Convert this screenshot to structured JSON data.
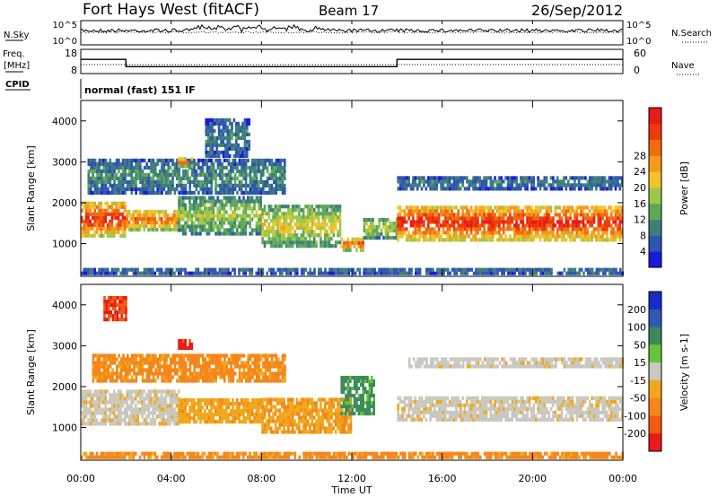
{
  "header": {
    "station": "Fort Hays West (fitACF)",
    "beam": "Beam 17",
    "date": "26/Sep/2012"
  },
  "status_panels": {
    "noise": {
      "left_label": "N.Sky",
      "left_ticks": [
        "10^5",
        "10^0"
      ],
      "right_label": "N.Search",
      "right_ticks": [
        "10^5",
        "10^0"
      ]
    },
    "freq": {
      "left_label_1": "Freq.",
      "left_label_2": "[MHz]",
      "left_ticks": [
        "18",
        "8"
      ],
      "right_label": "Nave",
      "right_ticks": [
        "60",
        "0"
      ],
      "freq_mhz_x_hours": [
        0,
        2.0,
        2.0,
        14.0,
        14.0,
        24
      ],
      "freq_mhz_y": [
        14.0,
        14.0,
        10.5,
        10.5,
        14.0,
        14.0
      ]
    },
    "cpid": {
      "label": "CPID",
      "value": "normal (fast) 151 IF"
    }
  },
  "chart_data": [
    {
      "type": "heatmap",
      "name": "power",
      "x_range_hours": [
        0,
        24
      ],
      "ylim": [
        200,
        4500
      ],
      "ylabel": "Slant Range [km]",
      "yticks": [
        {
          "value": 1000,
          "label": "1000"
        },
        {
          "value": 2000,
          "label": "2000"
        },
        {
          "value": 3000,
          "label": "3000"
        },
        {
          "value": 4000,
          "label": "4000"
        }
      ],
      "colorbar": {
        "label": "Power [dB]",
        "ticks": [
          "4",
          "8",
          "12",
          "16",
          "20",
          "24",
          "28"
        ],
        "colors": [
          "#1a1adc",
          "#2e55b3",
          "#3f7f7a",
          "#5fa85a",
          "#9cc84a",
          "#f2c32a",
          "#f59a1a",
          "#f26a10",
          "#ee3a0a",
          "#e81a1a"
        ]
      },
      "bands": [
        {
          "start": 0.0,
          "end": 2.0,
          "low": 1150,
          "high": 2000,
          "level": 0.9
        },
        {
          "start": 2.0,
          "end": 4.3,
          "low": 1300,
          "high": 1800,
          "level": 0.75
        },
        {
          "start": 4.3,
          "end": 8.0,
          "low": 1200,
          "high": 2100,
          "level": 0.45
        },
        {
          "start": 8.0,
          "end": 11.5,
          "low": 900,
          "high": 1900,
          "level": 0.55
        },
        {
          "start": 11.5,
          "end": 12.5,
          "low": 800,
          "high": 1100,
          "level": 0.8
        },
        {
          "start": 12.5,
          "end": 14.0,
          "low": 1100,
          "high": 1600,
          "level": 0.5
        },
        {
          "start": 14.0,
          "end": 24.0,
          "low": 1050,
          "high": 1900,
          "level": 0.92
        },
        {
          "start": 14.0,
          "end": 24.0,
          "low": 2300,
          "high": 2600,
          "level": 0.25
        },
        {
          "start": 0.3,
          "end": 9.0,
          "low": 2200,
          "high": 3000,
          "level": 0.3
        },
        {
          "start": 4.3,
          "end": 4.9,
          "low": 2850,
          "high": 3050,
          "level": 0.75
        },
        {
          "start": 5.5,
          "end": 7.5,
          "low": 3100,
          "high": 4000,
          "level": 0.25
        },
        {
          "start": 0.0,
          "end": 24.0,
          "low": 230,
          "high": 330,
          "level": 0.3
        }
      ]
    },
    {
      "type": "heatmap",
      "name": "velocity",
      "x_range_hours": [
        0,
        24
      ],
      "ylim": [
        200,
        4500
      ],
      "ylabel": "Slant Range [km]",
      "yticks": [
        {
          "value": 1000,
          "label": "1000"
        },
        {
          "value": 2000,
          "label": "2000"
        },
        {
          "value": 3000,
          "label": "3000"
        },
        {
          "value": 4000,
          "label": "4000"
        }
      ],
      "colorbar": {
        "label": "Velocity [m s-1]",
        "ticks": [
          "200",
          "100",
          "50",
          "15",
          "-15",
          "-50",
          "-100",
          "-200"
        ],
        "colors": [
          "#1a2ac8",
          "#2e5ab4",
          "#3c8a5a",
          "#66c43a",
          "#c8c8c0",
          "#f0a81a",
          "#f5861a",
          "#f25a10",
          "#e81a1a"
        ]
      },
      "bands": [
        {
          "start": 0.0,
          "end": 4.3,
          "low": 1050,
          "high": 1900,
          "vel": -5
        },
        {
          "start": 4.3,
          "end": 8.0,
          "low": 1100,
          "high": 1700,
          "vel": -40
        },
        {
          "start": 8.0,
          "end": 12.0,
          "low": 850,
          "high": 1700,
          "vel": -45
        },
        {
          "start": 11.5,
          "end": 13.0,
          "low": 1300,
          "high": 2200,
          "vel": 40
        },
        {
          "start": 14.0,
          "end": 24.0,
          "low": 1150,
          "high": 1750,
          "vel": -5
        },
        {
          "start": 14.5,
          "end": 24.0,
          "low": 2450,
          "high": 2650,
          "vel": -5
        },
        {
          "start": 0.5,
          "end": 9.0,
          "low": 2100,
          "high": 2800,
          "vel": -60
        },
        {
          "start": 1.0,
          "end": 2.0,
          "low": 3600,
          "high": 4200,
          "vel": -150
        },
        {
          "start": 4.3,
          "end": 4.9,
          "low": 2900,
          "high": 3100,
          "vel": -160
        },
        {
          "start": 0.0,
          "end": 24.0,
          "low": 230,
          "high": 330,
          "vel": -60
        }
      ]
    }
  ],
  "time_axis": {
    "label": "Time UT",
    "ticks": [
      {
        "hour": 0,
        "label": "00:00"
      },
      {
        "hour": 4,
        "label": "04:00"
      },
      {
        "hour": 8,
        "label": "08:00"
      },
      {
        "hour": 12,
        "label": "12:00"
      },
      {
        "hour": 16,
        "label": "16:00"
      },
      {
        "hour": 20,
        "label": "20:00"
      },
      {
        "hour": 24,
        "label": "00:00"
      }
    ]
  }
}
